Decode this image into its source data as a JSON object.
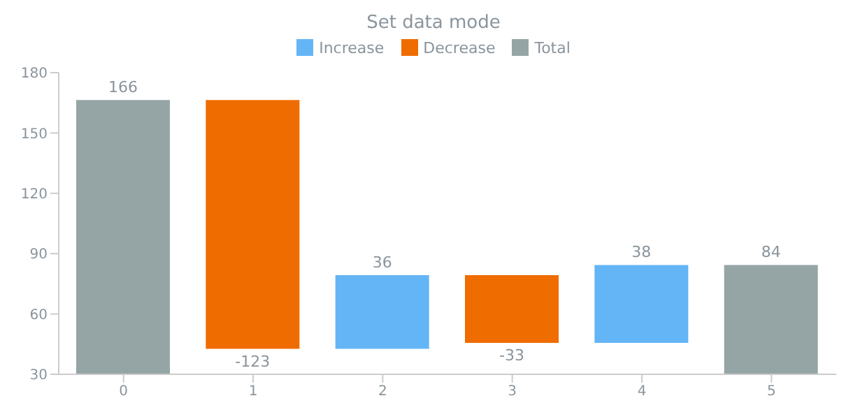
{
  "chart_data": {
    "type": "bar",
    "title": "Set data mode",
    "categories": [
      "0",
      "1",
      "2",
      "3",
      "4",
      "5"
    ],
    "series": [
      {
        "name": "Increase",
        "color": "#64b5f6",
        "values": [
          null,
          null,
          36,
          null,
          38,
          null
        ],
        "base": [
          null,
          null,
          43,
          null,
          46,
          null
        ]
      },
      {
        "name": "Decrease",
        "color": "#ef6c00",
        "values": [
          null,
          -123,
          null,
          -33,
          null,
          null
        ],
        "base": [
          null,
          166,
          null,
          79,
          null,
          null
        ]
      },
      {
        "name": "Total",
        "color": "#95a5a6",
        "values": [
          166,
          null,
          null,
          null,
          null,
          84
        ],
        "base": [
          0,
          null,
          null,
          null,
          null,
          0
        ]
      }
    ],
    "ylim": [
      30,
      180
    ],
    "yticks": [
      30,
      60,
      90,
      120,
      150,
      180
    ],
    "data_labels": true,
    "legend": "top"
  }
}
